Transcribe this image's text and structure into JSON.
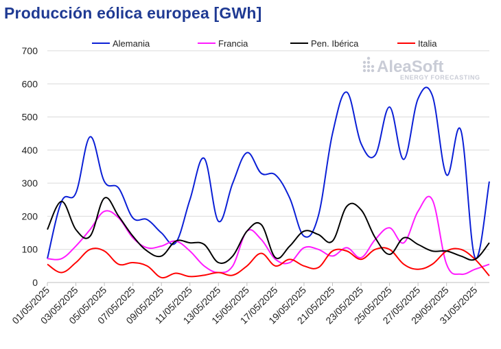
{
  "chart_data": {
    "type": "line",
    "title": "Producción eólica europea [GWh]",
    "ylim": [
      0,
      700
    ],
    "yticks": [
      0,
      100,
      200,
      300,
      400,
      500,
      600,
      700
    ],
    "grid": "horizontal",
    "legend_position": "top",
    "x_tick_labels": [
      "01/05/2025",
      "03/05/2025",
      "05/05/2025",
      "07/05/2025",
      "09/05/2025",
      "11/05/2025",
      "13/05/2025",
      "15/05/2025",
      "17/05/2025",
      "19/05/2025",
      "21/05/2025",
      "23/05/2025",
      "25/05/2025",
      "27/05/2025",
      "29/05/2025",
      "31/05/2025"
    ],
    "x": [
      "01/05",
      "02/05",
      "03/05",
      "04/05",
      "05/05",
      "06/05",
      "07/05",
      "08/05",
      "09/05",
      "10/05",
      "11/05",
      "12/05",
      "13/05",
      "14/05",
      "15/05",
      "16/05",
      "17/05",
      "18/05",
      "19/05",
      "20/05",
      "21/05",
      "22/05",
      "23/05",
      "24/05",
      "25/05",
      "26/05",
      "27/05",
      "28/05",
      "29/05",
      "30/05",
      "31/05",
      "01/06"
    ],
    "series": [
      {
        "name": "Alemania",
        "color": "#0a1fd6",
        "values": [
          72,
          245,
          270,
          440,
          305,
          285,
          195,
          190,
          150,
          120,
          250,
          375,
          185,
          300,
          392,
          330,
          325,
          255,
          140,
          200,
          450,
          575,
          420,
          385,
          530,
          372,
          555,
          565,
          325,
          460,
          75,
          305
        ]
      },
      {
        "name": "Francia",
        "color": "#ff1aff",
        "values": [
          72,
          72,
          110,
          160,
          215,
          195,
          135,
          105,
          110,
          125,
          95,
          50,
          30,
          50,
          155,
          130,
          70,
          60,
          105,
          100,
          80,
          105,
          75,
          130,
          165,
          120,
          215,
          250,
          55,
          25,
          40,
          55
        ]
      },
      {
        "name": "Pen. Ibérica",
        "color": "#000000",
        "values": [
          160,
          245,
          160,
          140,
          255,
          200,
          140,
          95,
          80,
          125,
          120,
          115,
          60,
          80,
          155,
          175,
          75,
          110,
          155,
          145,
          125,
          230,
          220,
          135,
          85,
          135,
          115,
          95,
          95,
          80,
          70,
          120
        ]
      },
      {
        "name": "Italia",
        "color": "#ff0000",
        "values": [
          55,
          30,
          60,
          100,
          95,
          55,
          60,
          50,
          15,
          28,
          18,
          22,
          30,
          22,
          50,
          88,
          50,
          70,
          50,
          45,
          95,
          95,
          70,
          100,
          100,
          55,
          40,
          55,
          95,
          100,
          70,
          20
        ]
      }
    ]
  },
  "logo": {
    "name": "AleaSoft",
    "tagline": "ENERGY FORECASTING",
    "color": "#c9ccd6"
  }
}
